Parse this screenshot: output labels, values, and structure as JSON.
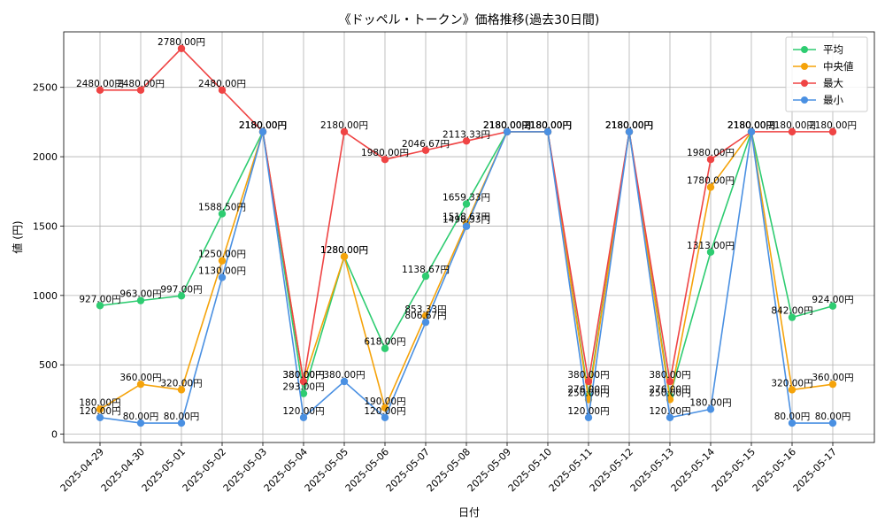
{
  "chart_data": {
    "type": "line",
    "title": "《ドッペル・トークン》価格推移(過去30日間)",
    "xlabel": "日付",
    "ylabel": "値 (円)",
    "ylim": [
      -60,
      2900
    ],
    "yticks": [
      0,
      500,
      1000,
      1500,
      2000,
      2500
    ],
    "grid": true,
    "legend_position": "top-right",
    "value_suffix": "円",
    "categories": [
      "2025-04-29",
      "2025-04-30",
      "2025-05-01",
      "2025-05-02",
      "2025-05-03",
      "2025-05-04",
      "2025-05-05",
      "2025-05-06",
      "2025-05-07",
      "2025-05-08",
      "2025-05-09",
      "2025-05-10",
      "2025-05-11",
      "2025-05-12",
      "2025-05-13",
      "2025-05-14",
      "2025-05-15",
      "2025-05-16",
      "2025-05-17"
    ],
    "series": [
      {
        "name": "平均",
        "color": "#2ecc71",
        "values": [
          927.0,
          963.0,
          997.0,
          1588.5,
          2180.0,
          293.0,
          1280.0,
          618.0,
          1138.67,
          1659.33,
          2180.0,
          2180.0,
          276.0,
          2180.0,
          276.0,
          1313.0,
          2180.0,
          842.0,
          924.0
        ]
      },
      {
        "name": "中央値",
        "color": "#f5a30a",
        "values": [
          180.0,
          360.0,
          320.0,
          1250.0,
          2180.0,
          380.0,
          1280.0,
          190.0,
          853.33,
          1518.67,
          2180.0,
          2180.0,
          250.0,
          2180.0,
          250.0,
          1780.0,
          2180.0,
          320.0,
          360.0
        ]
      },
      {
        "name": "最大",
        "color": "#ef4444",
        "values": [
          2480.0,
          2480.0,
          2780.0,
          2480.0,
          2180.0,
          380.0,
          2180.0,
          1980.0,
          2046.67,
          2113.33,
          2180.0,
          2180.0,
          380.0,
          2180.0,
          380.0,
          1980.0,
          2180.0,
          2180.0,
          2180.0
        ]
      },
      {
        "name": "最小",
        "color": "#4a90e2",
        "values": [
          120.0,
          80.0,
          80.0,
          1130.0,
          2180.0,
          120.0,
          380.0,
          120.0,
          806.67,
          1498.33,
          2180.0,
          2180.0,
          120.0,
          2180.0,
          120.0,
          180.0,
          2180.0,
          80.0,
          80.0
        ]
      }
    ]
  }
}
